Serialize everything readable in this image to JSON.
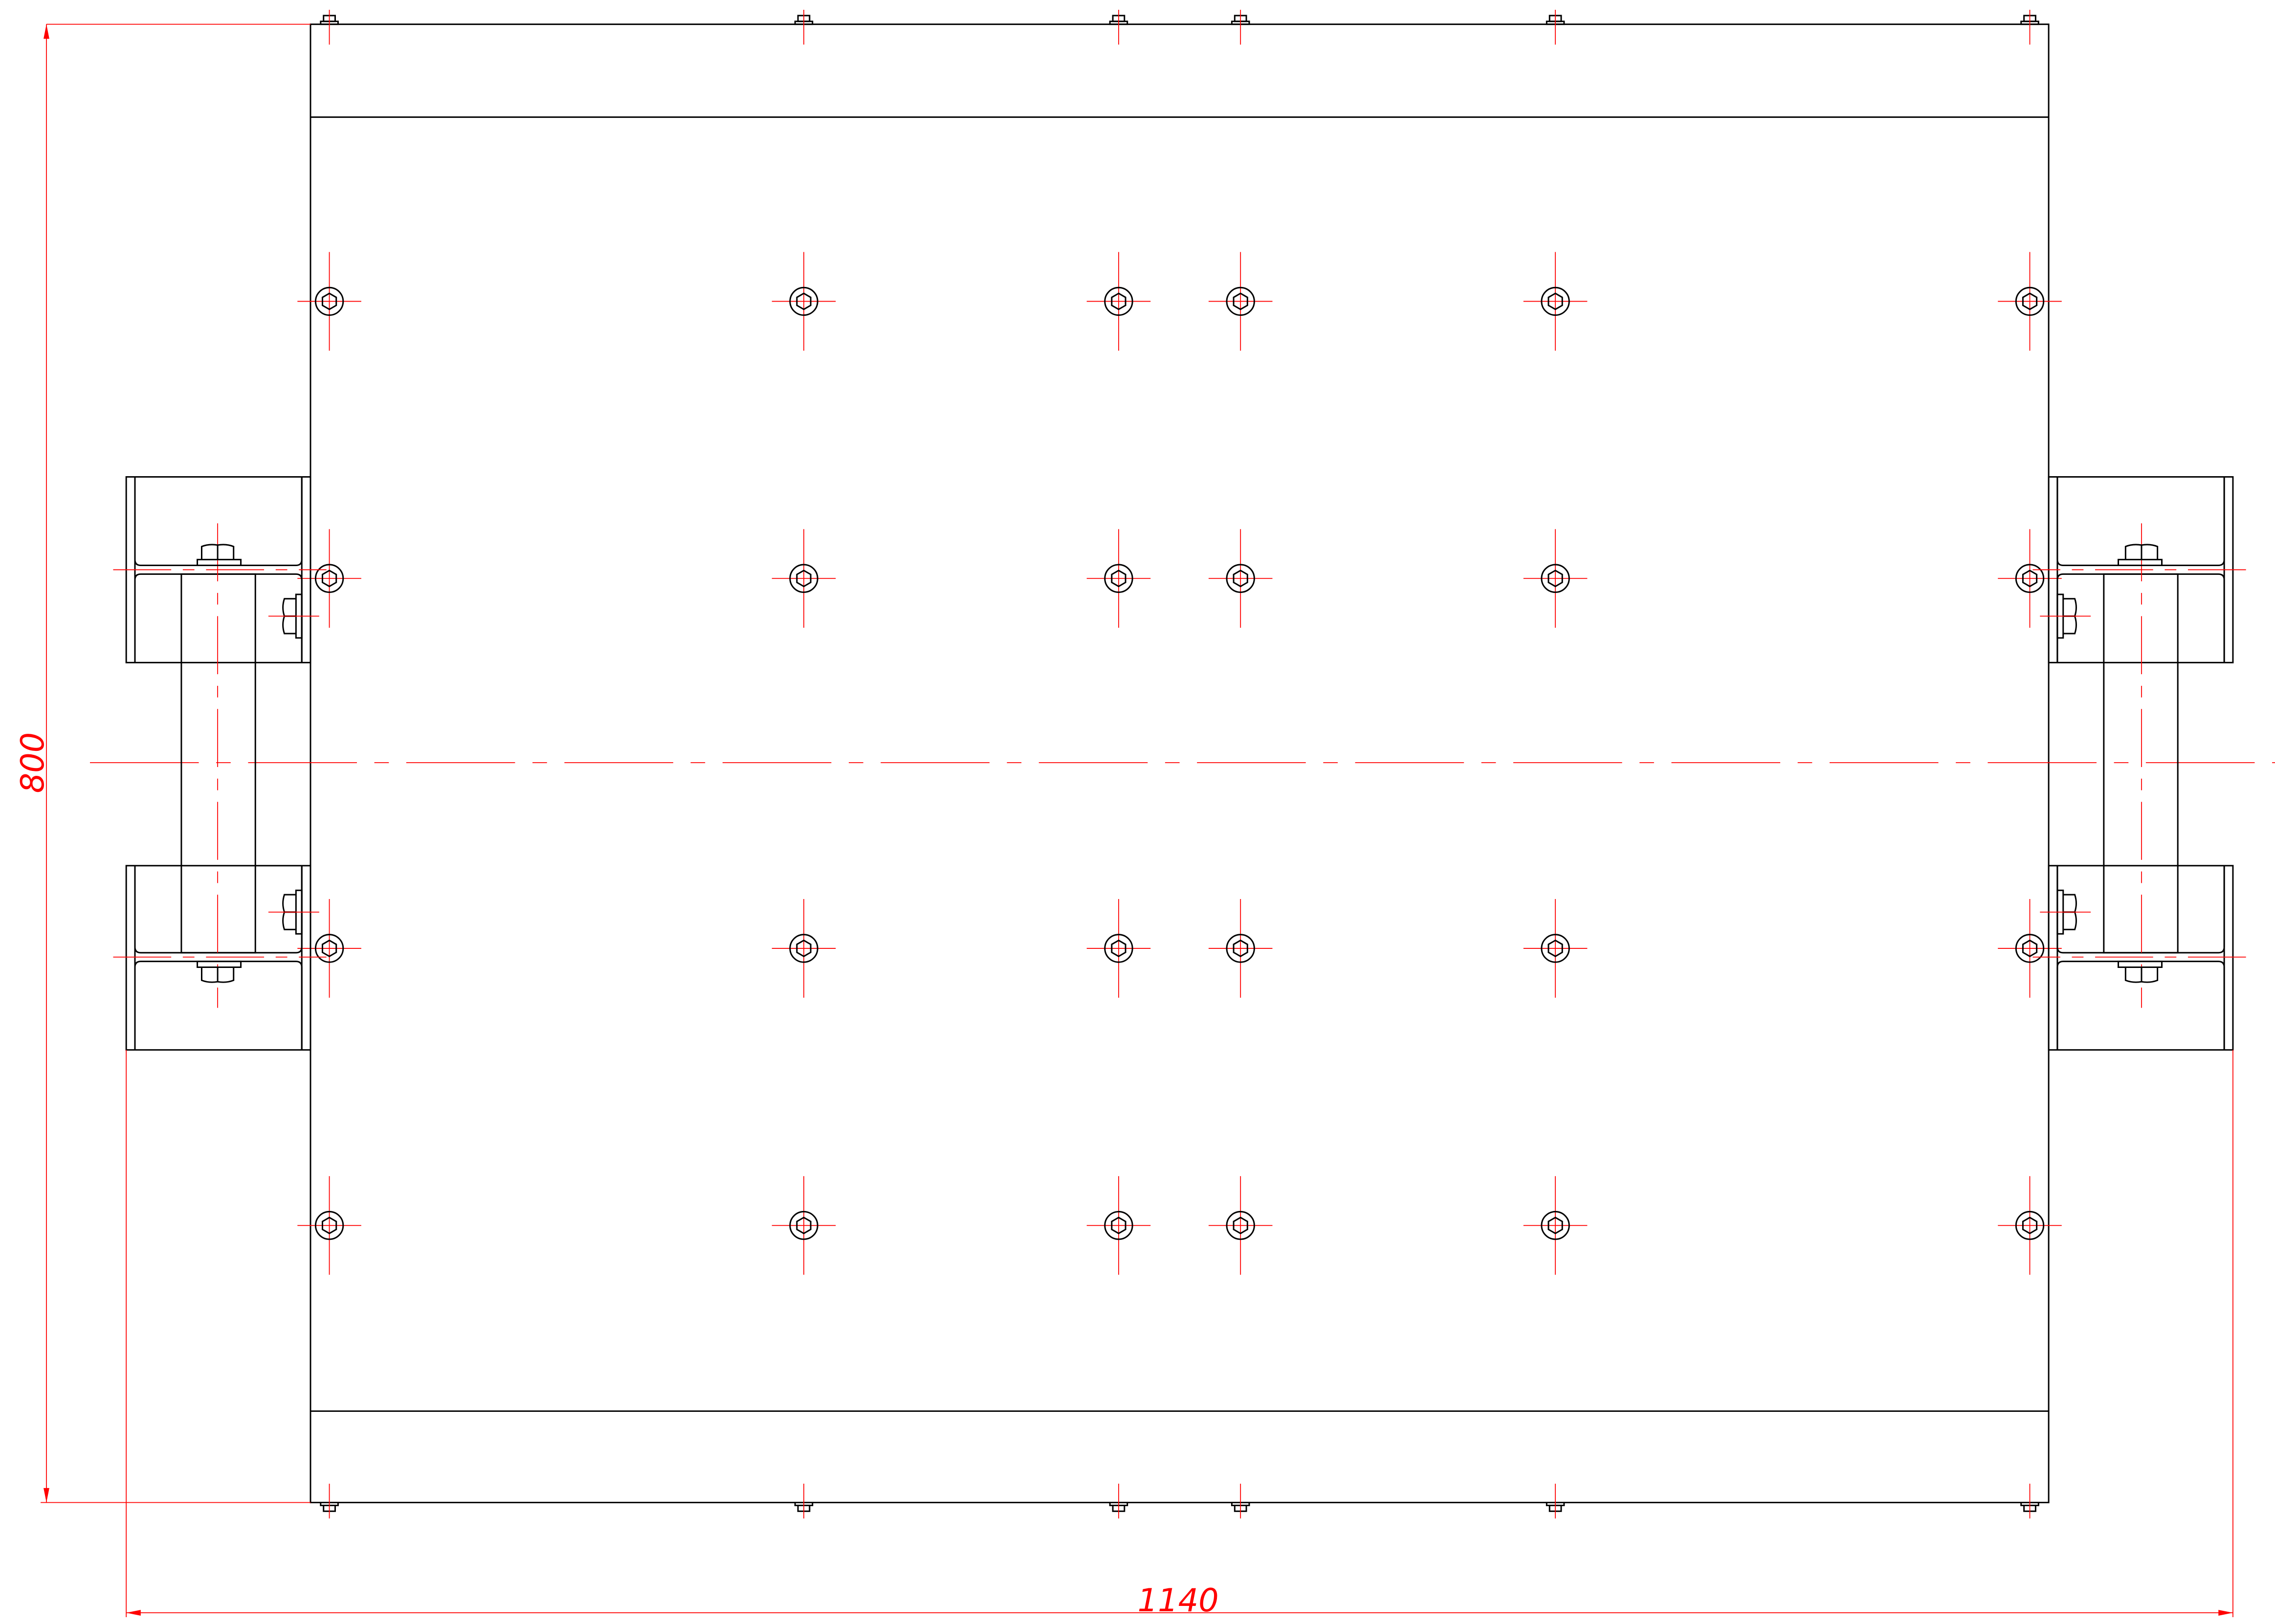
{
  "drawing": {
    "dimensions": {
      "height": "800",
      "width": "1140"
    },
    "colors": {
      "outline": "#000000",
      "centerline_and_dimension": "#ff0000",
      "background": "#ffffff"
    },
    "features": {
      "hole_rows": 4,
      "hole_columns": 6,
      "clamps": 2
    }
  }
}
